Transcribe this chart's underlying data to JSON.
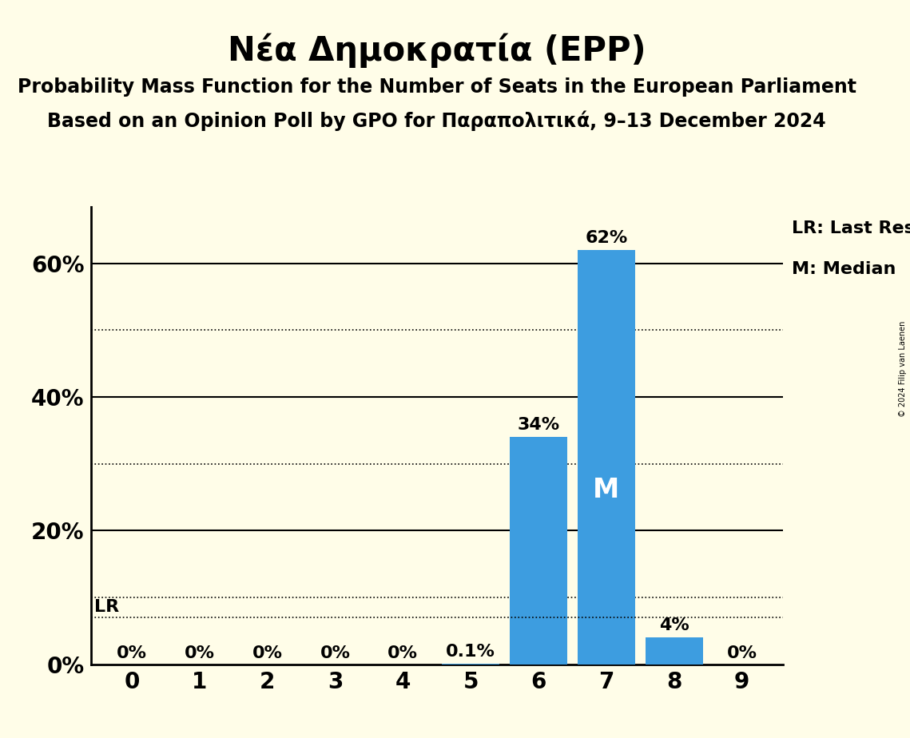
{
  "title": "Νέα Δημοκρατία (EPP)",
  "subtitle1": "Probability Mass Function for the Number of Seats in the European Parliament",
  "subtitle2": "Based on an Opinion Poll by GPO for Παραπολιτικά, 9–13 December 2024",
  "copyright": "© 2024 Filip van Laenen",
  "categories": [
    0,
    1,
    2,
    3,
    4,
    5,
    6,
    7,
    8,
    9
  ],
  "values": [
    0.0,
    0.0,
    0.0,
    0.0,
    0.0,
    0.001,
    0.34,
    0.62,
    0.04,
    0.0
  ],
  "bar_labels": [
    "0%",
    "0%",
    "0%",
    "0%",
    "0%",
    "0.1%",
    "34%",
    "62%",
    "4%",
    "0%"
  ],
  "bar_color": "#3d9de0",
  "median_seat": 7,
  "median_label": "M",
  "lr_value": 0.07,
  "lr_label": "LR",
  "background_color": "#fffde8",
  "solid_gridlines": [
    0.2,
    0.4,
    0.6
  ],
  "dotted_gridlines": [
    0.1,
    0.3,
    0.5
  ],
  "ytick_labels": [
    "0%",
    "20%",
    "40%",
    "60%"
  ],
  "ytick_values": [
    0.0,
    0.2,
    0.4,
    0.6
  ],
  "ylim": [
    0,
    0.685
  ],
  "xlim": [
    -0.6,
    9.6
  ],
  "legend_lr": "LR: Last Result",
  "legend_m": "M: Median",
  "title_fontsize": 30,
  "subtitle_fontsize": 17,
  "label_fontsize": 16,
  "tick_fontsize": 20,
  "bar_label_fontsize": 16,
  "median_fontsize": 24
}
